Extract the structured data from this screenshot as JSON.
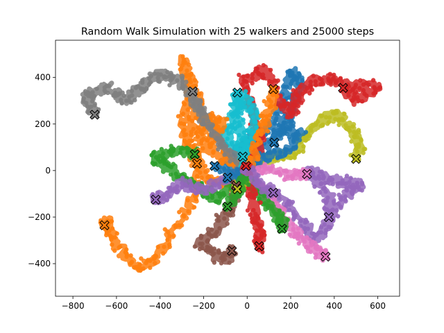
{
  "chart_data": {
    "type": "scatter",
    "title": "Random Walk Simulation with 25 walkers and 25000 steps",
    "xlabel": "",
    "ylabel": "",
    "xlim": [
      -880,
      700
    ],
    "ylim": [
      -540,
      560
    ],
    "xticks": [
      -800,
      -600,
      -400,
      -200,
      0,
      200,
      400,
      600
    ],
    "yticks": [
      -400,
      -200,
      0,
      200,
      400
    ],
    "xtick_labels": [
      "−800",
      "−600",
      "−400",
      "−200",
      "0",
      "200",
      "400",
      "600"
    ],
    "ytick_labels": [
      "−400",
      "−200",
      "0",
      "200",
      "400"
    ],
    "grid": false,
    "legend": "none",
    "end_marker": "X",
    "series": [
      {
        "color": "#1f77b4",
        "end": [
          -150,
          20
        ],
        "waypoints": [
          [
            0,
            0
          ],
          [
            -60,
            80
          ],
          [
            30,
            140
          ],
          [
            120,
            200
          ],
          [
            170,
            320
          ],
          [
            210,
            430
          ],
          [
            240,
            380
          ],
          [
            200,
            240
          ],
          [
            120,
            140
          ],
          [
            40,
            60
          ],
          [
            -80,
            10
          ],
          [
            -150,
            20
          ]
        ]
      },
      {
        "color": "#ff7f0e",
        "end": [
          -655,
          -235
        ],
        "waypoints": [
          [
            0,
            0
          ],
          [
            -80,
            -60
          ],
          [
            -180,
            -40
          ],
          [
            -250,
            60
          ],
          [
            -300,
            200
          ],
          [
            -260,
            380
          ],
          [
            -300,
            480
          ],
          [
            -220,
            300
          ],
          [
            -260,
            120
          ],
          [
            -220,
            -80
          ],
          [
            -340,
            -250
          ],
          [
            -420,
            -380
          ],
          [
            -500,
            -420
          ],
          [
            -600,
            -320
          ],
          [
            -640,
            -220
          ],
          [
            -655,
            -235
          ]
        ]
      },
      {
        "color": "#2ca02c",
        "end": [
          -240,
          70
        ],
        "waypoints": [
          [
            0,
            0
          ],
          [
            -60,
            -60
          ],
          [
            -130,
            -120
          ],
          [
            -200,
            -90
          ],
          [
            -280,
            -40
          ],
          [
            -380,
            20
          ],
          [
            -420,
            60
          ],
          [
            -300,
            80
          ],
          [
            -240,
            70
          ]
        ]
      },
      {
        "color": "#d62728",
        "end": [
          440,
          355
        ],
        "waypoints": [
          [
            0,
            0
          ],
          [
            60,
            120
          ],
          [
            20,
            260
          ],
          [
            -20,
            390
          ],
          [
            80,
            440
          ],
          [
            140,
            320
          ],
          [
            200,
            240
          ],
          [
            230,
            300
          ],
          [
            280,
            380
          ],
          [
            380,
            390
          ],
          [
            460,
            370
          ],
          [
            600,
            360
          ],
          [
            500,
            300
          ],
          [
            440,
            355
          ]
        ]
      },
      {
        "color": "#9467bd",
        "end": [
          375,
          -200
        ],
        "waypoints": [
          [
            0,
            0
          ],
          [
            60,
            -80
          ],
          [
            160,
            -120
          ],
          [
            240,
            -200
          ],
          [
            320,
            -300
          ],
          [
            380,
            -200
          ],
          [
            460,
            -100
          ],
          [
            520,
            -60
          ],
          [
            430,
            -50
          ],
          [
            350,
            -30
          ],
          [
            280,
            0
          ],
          [
            380,
            -120
          ],
          [
            375,
            -200
          ]
        ]
      },
      {
        "color": "#8c564b",
        "end": [
          -70,
          -345
        ],
        "waypoints": [
          [
            0,
            0
          ],
          [
            -40,
            -80
          ],
          [
            -80,
            -180
          ],
          [
            -140,
            -260
          ],
          [
            -220,
            -300
          ],
          [
            -160,
            -360
          ],
          [
            -90,
            -380
          ],
          [
            -70,
            -345
          ]
        ]
      },
      {
        "color": "#e377c2",
        "end": [
          360,
          -370
        ],
        "waypoints": [
          [
            0,
            0
          ],
          [
            60,
            -80
          ],
          [
            130,
            -160
          ],
          [
            200,
            -240
          ],
          [
            260,
            -300
          ],
          [
            330,
            -350
          ],
          [
            360,
            -370
          ]
        ]
      },
      {
        "color": "#7f7f7f",
        "end": [
          -700,
          240
        ],
        "waypoints": [
          [
            0,
            0
          ],
          [
            -80,
            60
          ],
          [
            -160,
            180
          ],
          [
            -240,
            300
          ],
          [
            -320,
            390
          ],
          [
            -400,
            420
          ],
          [
            -480,
            360
          ],
          [
            -560,
            300
          ],
          [
            -640,
            360
          ],
          [
            -740,
            320
          ],
          [
            -700,
            240
          ]
        ]
      },
      {
        "color": "#bcbd22",
        "end": [
          500,
          50
        ],
        "waypoints": [
          [
            0,
            0
          ],
          [
            60,
            40
          ],
          [
            140,
            60
          ],
          [
            220,
            80
          ],
          [
            280,
            160
          ],
          [
            340,
            220
          ],
          [
            420,
            240
          ],
          [
            480,
            180
          ],
          [
            520,
            120
          ],
          [
            500,
            50
          ]
        ]
      },
      {
        "color": "#17becf",
        "end": [
          -20,
          60
        ],
        "waypoints": [
          [
            0,
            0
          ],
          [
            -40,
            80
          ],
          [
            -100,
            160
          ],
          [
            -60,
            260
          ],
          [
            -20,
            320
          ],
          [
            40,
            240
          ],
          [
            20,
            140
          ],
          [
            -20,
            60
          ]
        ]
      },
      {
        "color": "#1f77b4",
        "end": [
          125,
          120
        ],
        "waypoints": [
          [
            0,
            0
          ],
          [
            80,
            60
          ],
          [
            180,
            80
          ],
          [
            240,
            160
          ],
          [
            180,
            200
          ],
          [
            125,
            120
          ]
        ]
      },
      {
        "color": "#ff7f0e",
        "end": [
          -230,
          30
        ],
        "waypoints": [
          [
            0,
            0
          ],
          [
            -120,
            60
          ],
          [
            -220,
            140
          ],
          [
            -180,
            220
          ],
          [
            -120,
            200
          ],
          [
            -230,
            30
          ]
        ]
      },
      {
        "color": "#2ca02c",
        "end": [
          160,
          -250
        ],
        "waypoints": [
          [
            0,
            0
          ],
          [
            40,
            -80
          ],
          [
            100,
            -150
          ],
          [
            160,
            -220
          ],
          [
            160,
            -250
          ]
        ]
      },
      {
        "color": "#d62728",
        "end": [
          55,
          -325
        ],
        "waypoints": [
          [
            0,
            0
          ],
          [
            20,
            -100
          ],
          [
            40,
            -200
          ],
          [
            60,
            -280
          ],
          [
            55,
            -325
          ]
        ]
      },
      {
        "color": "#9467bd",
        "end": [
          -420,
          -125
        ],
        "waypoints": [
          [
            0,
            0
          ],
          [
            -100,
            -40
          ],
          [
            -200,
            -80
          ],
          [
            -300,
            -60
          ],
          [
            -380,
            -110
          ],
          [
            -420,
            -125
          ]
        ]
      },
      {
        "color": "#8c564b",
        "end": [
          -50,
          -65
        ],
        "waypoints": [
          [
            0,
            0
          ],
          [
            -30,
            -30
          ],
          [
            -50,
            -65
          ]
        ]
      },
      {
        "color": "#e377c2",
        "end": [
          275,
          -15
        ],
        "waypoints": [
          [
            0,
            0
          ],
          [
            100,
            0
          ],
          [
            200,
            -20
          ],
          [
            275,
            -15
          ]
        ]
      },
      {
        "color": "#7f7f7f",
        "end": [
          -250,
          340
        ],
        "waypoints": [
          [
            0,
            0
          ],
          [
            -120,
            120
          ],
          [
            -200,
            220
          ],
          [
            -250,
            340
          ]
        ]
      },
      {
        "color": "#bcbd22",
        "end": [
          -45,
          -80
        ],
        "waypoints": [
          [
            0,
            0
          ],
          [
            -20,
            -40
          ],
          [
            -45,
            -80
          ]
        ]
      },
      {
        "color": "#17becf",
        "end": [
          -45,
          335
        ],
        "waypoints": [
          [
            0,
            0
          ],
          [
            -30,
            140
          ],
          [
            -40,
            240
          ],
          [
            -45,
            335
          ]
        ]
      },
      {
        "color": "#1f77b4",
        "end": [
          -90,
          -30
        ],
        "waypoints": [
          [
            0,
            0
          ],
          [
            -50,
            -20
          ],
          [
            -90,
            -30
          ]
        ]
      },
      {
        "color": "#ff7f0e",
        "end": [
          120,
          350
        ],
        "waypoints": [
          [
            0,
            0
          ],
          [
            60,
            150
          ],
          [
            100,
            260
          ],
          [
            120,
            350
          ]
        ]
      },
      {
        "color": "#2ca02c",
        "end": [
          -90,
          -155
        ],
        "waypoints": [
          [
            0,
            0
          ],
          [
            -40,
            -80
          ],
          [
            -90,
            -155
          ]
        ]
      },
      {
        "color": "#d62728",
        "end": [
          -5,
          20
        ],
        "waypoints": [
          [
            0,
            0
          ],
          [
            -5,
            20
          ]
        ]
      },
      {
        "color": "#9467bd",
        "end": [
          120,
          -95
        ],
        "waypoints": [
          [
            0,
            0
          ],
          [
            60,
            -60
          ],
          [
            120,
            -95
          ]
        ]
      }
    ]
  }
}
